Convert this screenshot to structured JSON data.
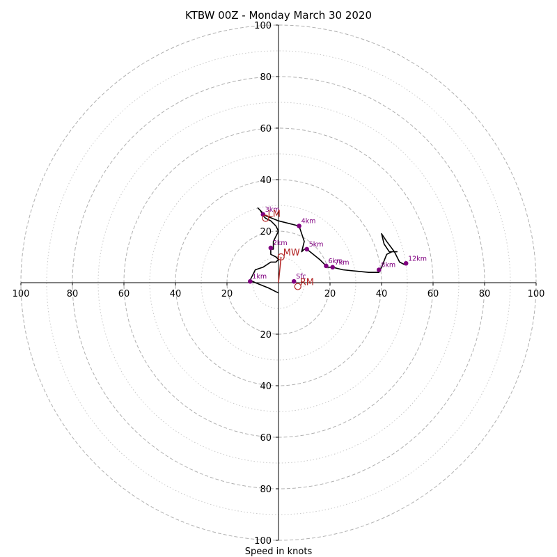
{
  "chart_data": {
    "type": "hodograph",
    "title": "KTBW 00Z - Monday March 30 2020",
    "xlabel": "Speed in knots",
    "range": [
      -100,
      100
    ],
    "ring_major": [
      20,
      40,
      60,
      80,
      100
    ],
    "ring_minor": [
      10,
      30,
      50,
      70,
      90
    ],
    "tick_labels_x_left": [
      "100",
      "80",
      "60",
      "40",
      "20"
    ],
    "tick_labels_x_right": [
      "20",
      "40",
      "60",
      "80",
      "100"
    ],
    "tick_labels_y_top": [
      "100",
      "80",
      "60",
      "40",
      "20"
    ],
    "tick_labels_y_bottom": [
      "20",
      "40",
      "60",
      "80",
      "100"
    ],
    "grid": true,
    "hodograph_color": "#000000",
    "marker_color": "#800080",
    "motion_color": "#b22222",
    "trace": [
      [
        0,
        -4
      ],
      [
        -4,
        -2
      ],
      [
        -9,
        0
      ],
      [
        -11,
        1
      ],
      [
        -9,
        5
      ],
      [
        -6,
        6
      ],
      [
        -3,
        8
      ],
      [
        -1,
        8
      ],
      [
        0,
        9
      ],
      [
        -1,
        10
      ],
      [
        -3,
        11
      ],
      [
        -3,
        13
      ],
      [
        -2,
        13
      ],
      [
        -2,
        16
      ],
      [
        -1,
        18
      ],
      [
        0,
        20
      ],
      [
        -1,
        22
      ],
      [
        -3,
        24
      ],
      [
        -5,
        25
      ],
      [
        -6,
        26
      ],
      [
        -7,
        28
      ],
      [
        -8,
        29
      ],
      [
        -7,
        28
      ],
      [
        -5,
        26
      ],
      [
        0,
        24
      ],
      [
        8,
        22
      ],
      [
        10,
        16
      ],
      [
        9,
        12
      ],
      [
        10,
        13
      ],
      [
        11,
        13
      ],
      [
        16,
        9
      ],
      [
        19,
        6
      ],
      [
        21,
        6
      ],
      [
        25,
        5
      ],
      [
        35,
        4
      ],
      [
        39,
        4
      ],
      [
        40,
        6
      ],
      [
        42,
        11
      ],
      [
        44,
        12
      ],
      [
        46,
        12
      ],
      [
        43,
        12
      ],
      [
        41,
        15
      ],
      [
        40,
        19
      ],
      [
        42,
        16
      ],
      [
        45,
        12
      ],
      [
        47,
        8
      ],
      [
        49,
        7
      ]
    ],
    "storm_motion_vector": [
      [
        0,
        0
      ],
      [
        1,
        10
      ]
    ],
    "heights": [
      {
        "label": "Sfc",
        "u": 6,
        "v": 0.5
      },
      {
        "label": "1km",
        "u": -11,
        "v": 0.5
      },
      {
        "label": "2km",
        "u": -3,
        "v": 13.5
      },
      {
        "label": "3km",
        "u": -6,
        "v": 26.5
      },
      {
        "label": "4km",
        "u": 8,
        "v": 22
      },
      {
        "label": "5km",
        "u": 11,
        "v": 13
      },
      {
        "label": "6km",
        "u": 18.5,
        "v": 6.5
      },
      {
        "label": "7km",
        "u": 21,
        "v": 6
      },
      {
        "label": "8km",
        "u": 39,
        "v": 5
      },
      {
        "label": "12km",
        "u": 49.5,
        "v": 7.5
      }
    ],
    "storm_motion": [
      {
        "label": "LM",
        "u": -5,
        "v": 25
      },
      {
        "label": "MW",
        "u": 1,
        "v": 10
      },
      {
        "label": "RM",
        "u": 7.5,
        "v": -1.5
      }
    ]
  }
}
